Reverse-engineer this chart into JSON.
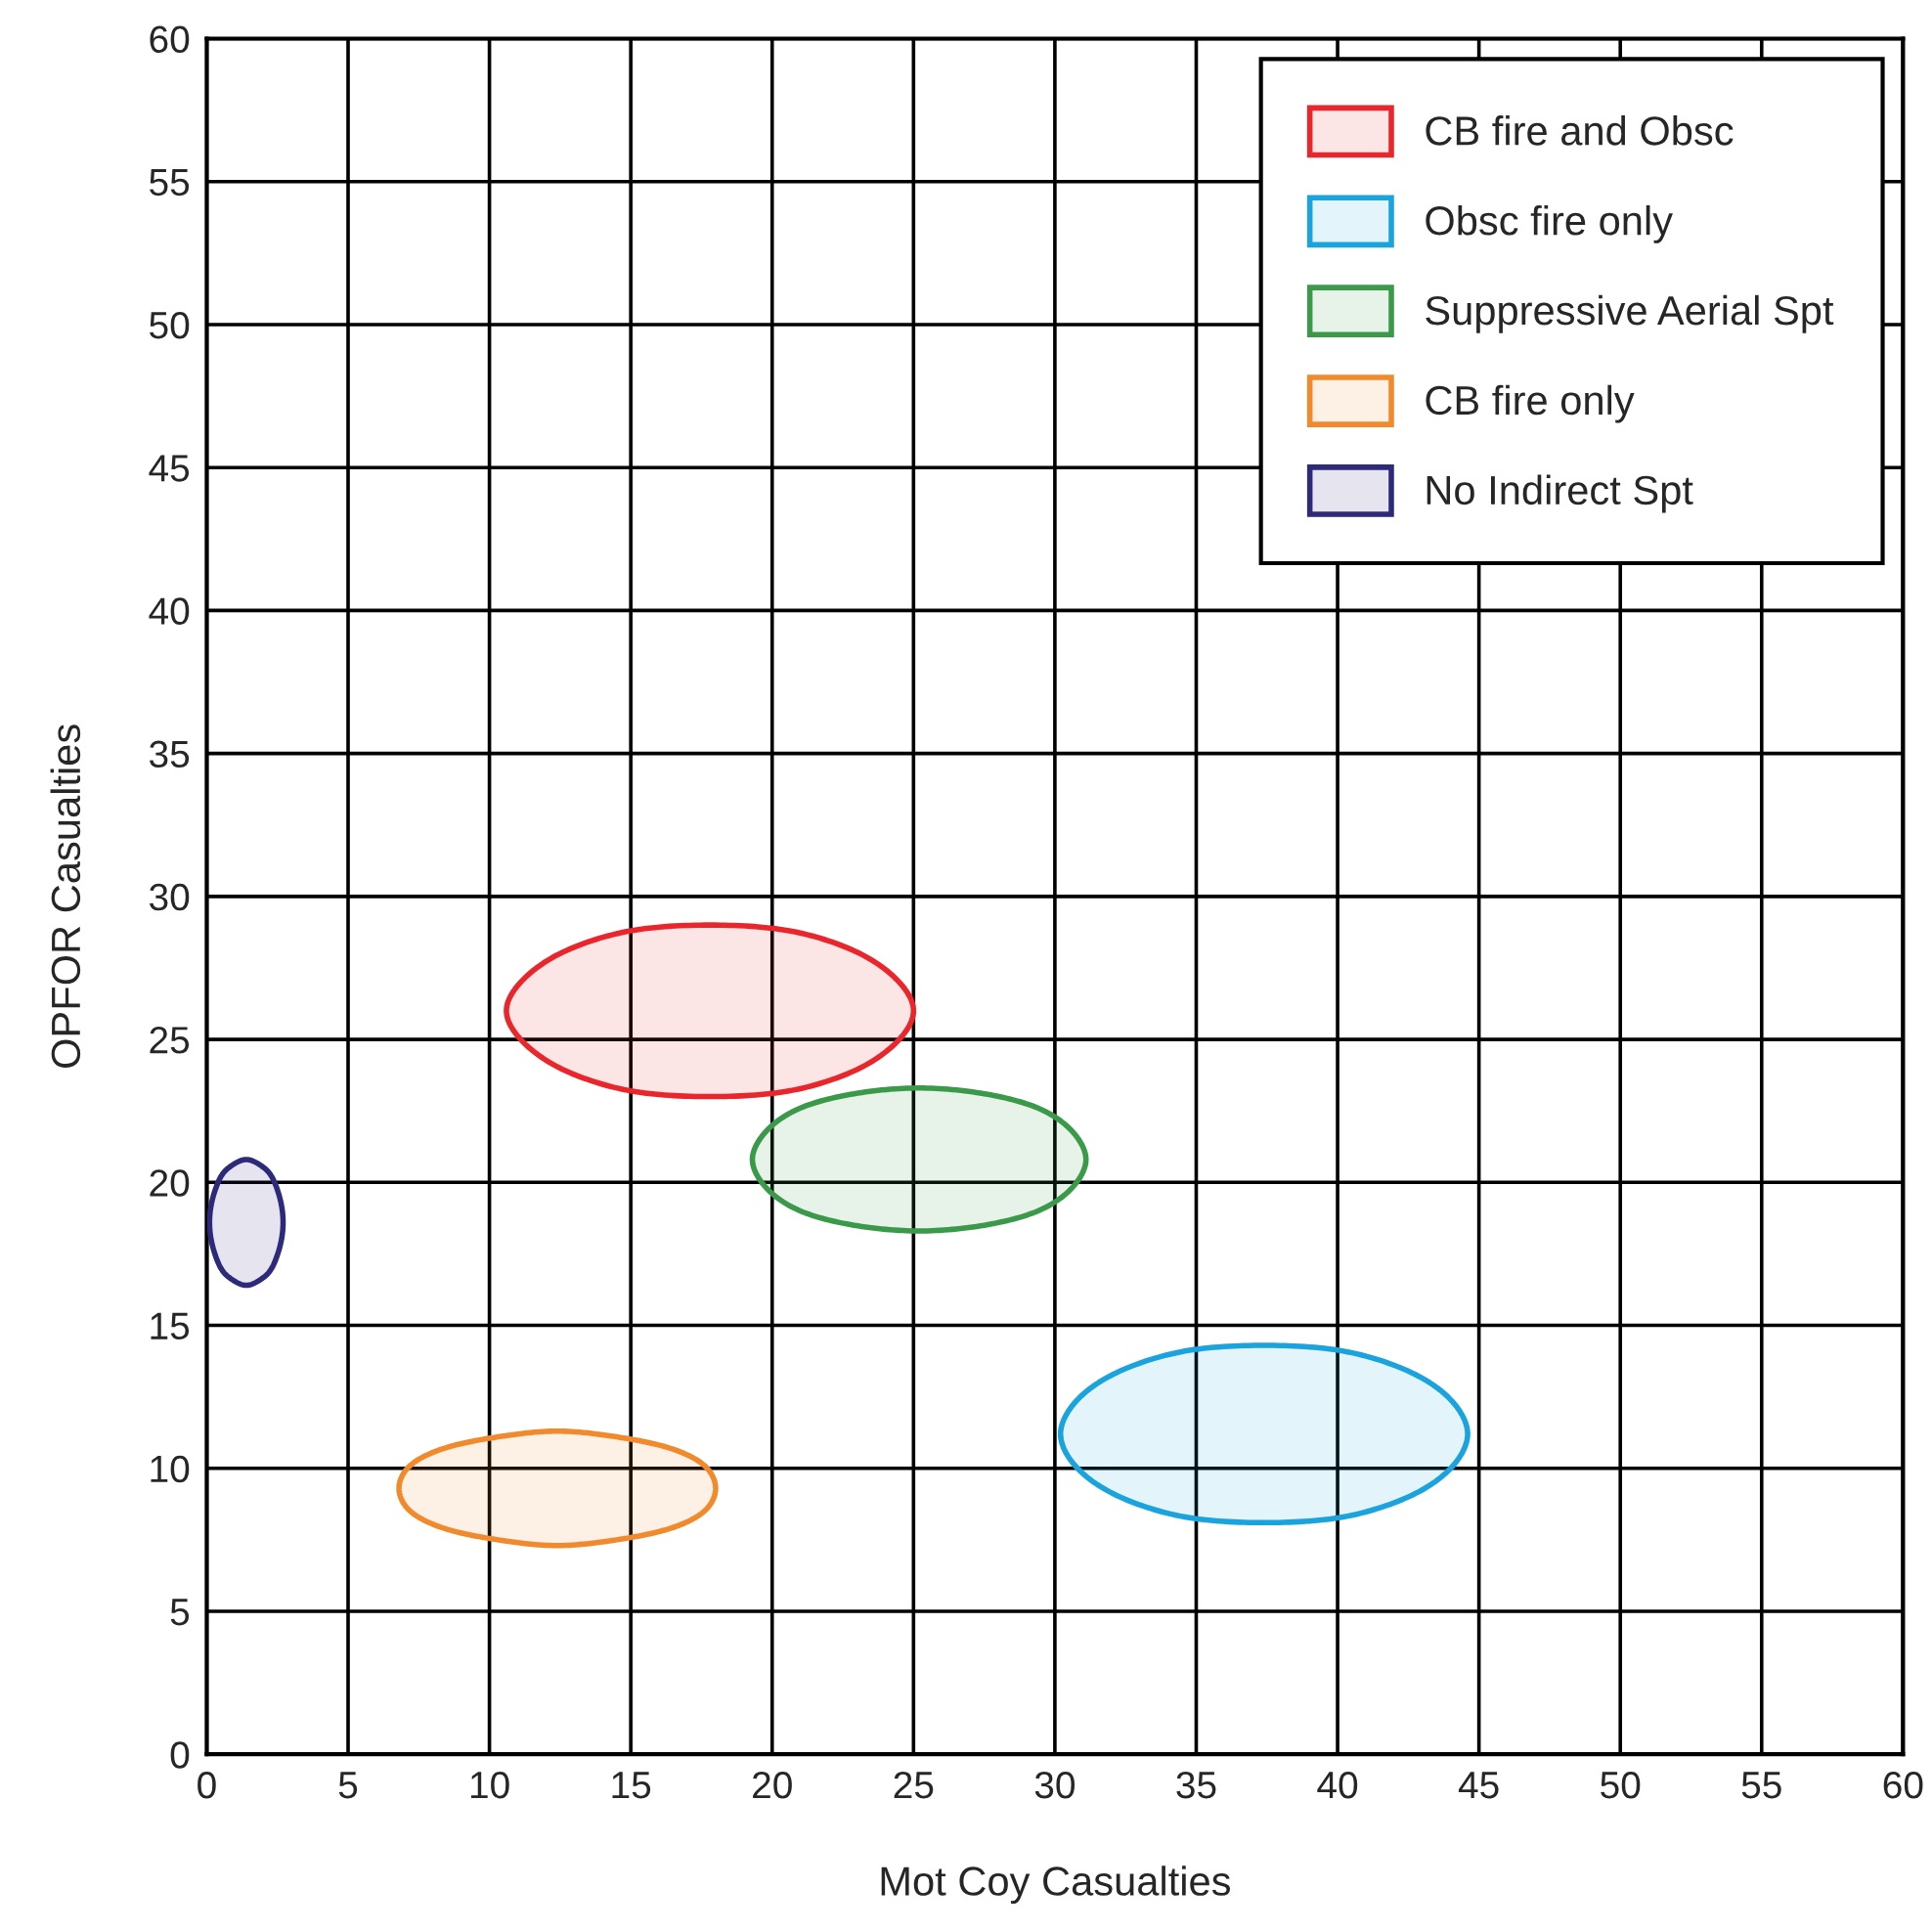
{
  "chart_data": {
    "type": "area",
    "xlabel": "Mot Coy Casualties",
    "ylabel": "OPFOR Casualties",
    "xlim": [
      0,
      60
    ],
    "ylim": [
      0,
      60
    ],
    "xticks": [
      0,
      5,
      10,
      15,
      20,
      25,
      30,
      35,
      40,
      45,
      50,
      55,
      60
    ],
    "yticks": [
      0,
      5,
      10,
      15,
      20,
      25,
      30,
      35,
      40,
      45,
      50,
      55,
      60
    ],
    "grid": true,
    "legend": "top right",
    "line_style": "solid",
    "marker": "none",
    "series": [
      {
        "name": "CB fire and Obsc",
        "color": "#e8262b",
        "x": [
          25.0,
          24.4,
          22.9,
          20.6,
          17.8,
          15.0,
          12.7,
          11.2,
          10.6,
          11.2,
          12.7,
          15.0,
          17.8,
          20.6,
          22.9,
          24.4
        ],
        "values": [
          26.0,
          27.1,
          28.1,
          28.8,
          29.0,
          28.8,
          28.1,
          27.1,
          26.0,
          24.9,
          23.9,
          23.2,
          23.0,
          23.2,
          23.9,
          24.9
        ]
      },
      {
        "name": "Obsc fire only",
        "color": "#1aa3dc",
        "x": [
          44.6,
          44.0,
          42.5,
          40.2,
          37.4,
          34.6,
          32.3,
          30.8,
          30.2,
          30.8,
          32.3,
          34.6,
          37.4,
          40.2,
          42.5,
          44.0
        ],
        "values": [
          11.2,
          12.4,
          13.4,
          14.1,
          14.3,
          14.1,
          13.4,
          12.4,
          11.2,
          10.0,
          9.0,
          8.3,
          8.1,
          8.3,
          9.0,
          10.0
        ]
      },
      {
        "name": "Suppressive Aerial Spt",
        "color": "#3a9a4a",
        "x": [
          31.1,
          30.6,
          29.4,
          27.5,
          25.2,
          22.9,
          21.0,
          19.8,
          19.3,
          19.8,
          21.0,
          22.9,
          25.2,
          27.5,
          29.4,
          30.6
        ],
        "values": [
          20.8,
          21.8,
          22.6,
          23.1,
          23.3,
          23.1,
          22.6,
          21.8,
          20.8,
          19.8,
          19.0,
          18.5,
          18.3,
          18.5,
          19.0,
          19.8
        ]
      },
      {
        "name": "CB fire only",
        "color": "#f08a2c",
        "x": [
          18.0,
          17.6,
          16.4,
          14.5,
          12.4,
          10.3,
          8.4,
          7.2,
          6.8,
          7.2,
          8.4,
          10.3,
          12.4,
          14.5,
          16.4,
          17.6
        ],
        "values": [
          9.3,
          10.1,
          10.7,
          11.1,
          11.3,
          11.1,
          10.7,
          10.1,
          9.3,
          8.5,
          7.9,
          7.5,
          7.3,
          7.5,
          7.9,
          8.5
        ]
      },
      {
        "name": "No Indirect Spt",
        "color": "#2e2a7a",
        "x": [
          2.7,
          2.6,
          2.3,
          1.9,
          1.4,
          0.9,
          0.5,
          0.2,
          0.1,
          0.2,
          0.5,
          0.9,
          1.4,
          1.9,
          2.3,
          2.6
        ],
        "values": [
          18.6,
          19.4,
          20.2,
          20.6,
          20.8,
          20.6,
          20.2,
          19.4,
          18.6,
          17.8,
          17.0,
          16.6,
          16.4,
          16.6,
          17.0,
          17.8
        ]
      }
    ]
  }
}
